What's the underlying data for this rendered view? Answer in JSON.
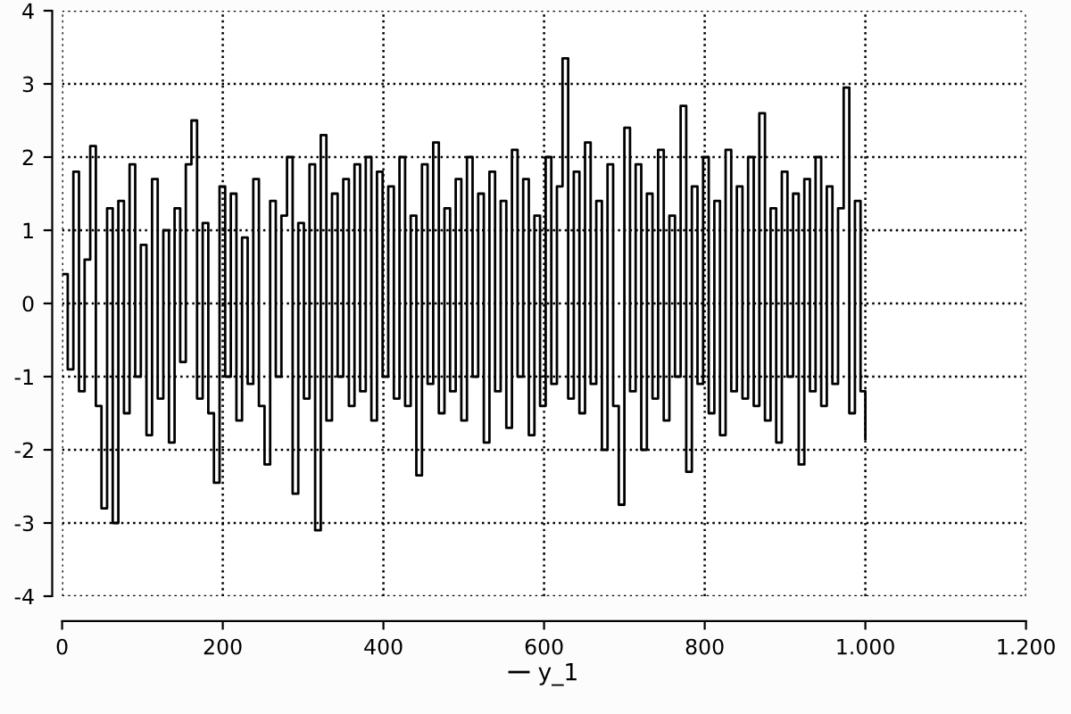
{
  "chart_data": {
    "type": "step",
    "xlim": [
      0,
      1200
    ],
    "ylim": [
      -4,
      4
    ],
    "xticks": [
      0,
      200,
      400,
      600,
      800,
      {
        "value": 1000,
        "label": "1.000"
      },
      {
        "value": 1200,
        "label": "1.200"
      }
    ],
    "yticks": [
      -4,
      -3,
      -2,
      -1,
      0,
      1,
      2,
      3,
      4
    ],
    "grid": true,
    "legend": "bottom",
    "line_style": "solid",
    "series": [
      {
        "name": "y_1",
        "color": "#000000",
        "x": [
          0,
          7,
          14,
          21,
          28,
          35,
          42,
          49,
          56,
          63,
          70,
          77,
          84,
          91,
          98,
          105,
          112,
          119,
          126,
          133,
          140,
          147,
          154,
          161,
          168,
          175,
          182,
          189,
          196,
          203,
          210,
          217,
          224,
          231,
          238,
          245,
          252,
          259,
          266,
          273,
          280,
          287,
          294,
          301,
          308,
          315,
          322,
          329,
          336,
          343,
          350,
          357,
          364,
          371,
          378,
          385,
          392,
          399,
          406,
          413,
          420,
          427,
          434,
          441,
          448,
          455,
          462,
          469,
          476,
          483,
          490,
          497,
          504,
          511,
          518,
          525,
          532,
          539,
          546,
          553,
          560,
          567,
          574,
          581,
          588,
          595,
          602,
          609,
          616,
          623,
          630,
          637,
          644,
          651,
          658,
          665,
          672,
          679,
          686,
          693,
          700,
          707,
          714,
          721,
          728,
          735,
          742,
          749,
          756,
          763,
          770,
          777,
          784,
          791,
          798,
          805,
          812,
          819,
          826,
          833,
          840,
          847,
          854,
          861,
          868,
          875,
          882,
          889,
          896,
          903,
          910,
          917,
          924,
          931,
          938,
          945,
          952,
          959,
          966,
          973,
          980,
          987,
          994,
          1000
        ],
        "values": [
          0.4,
          -0.9,
          1.8,
          -1.2,
          0.6,
          2.15,
          -1.4,
          -2.8,
          1.3,
          -3.0,
          1.4,
          -1.5,
          1.9,
          -1.0,
          0.8,
          -1.8,
          1.7,
          -1.3,
          1.0,
          -1.9,
          1.3,
          -0.8,
          1.9,
          2.5,
          -1.3,
          1.1,
          -1.5,
          -2.45,
          1.6,
          -1.0,
          1.5,
          -1.6,
          0.9,
          -1.1,
          1.7,
          -1.4,
          -2.2,
          1.4,
          -1.0,
          1.2,
          2.0,
          -2.6,
          1.1,
          -1.3,
          1.9,
          -3.1,
          2.3,
          -1.6,
          1.5,
          -1.0,
          1.7,
          -1.4,
          1.9,
          -1.2,
          2.0,
          -1.6,
          1.8,
          -1.0,
          1.6,
          -1.3,
          2.0,
          -1.4,
          1.2,
          -2.35,
          1.9,
          -1.1,
          2.2,
          -1.5,
          1.3,
          -1.2,
          1.7,
          -1.6,
          2.0,
          -1.0,
          1.5,
          -1.9,
          1.8,
          -1.2,
          1.4,
          -1.7,
          2.1,
          -1.0,
          1.7,
          -1.8,
          1.2,
          -1.4,
          2.0,
          -1.1,
          1.6,
          3.35,
          -1.3,
          1.8,
          -1.5,
          2.2,
          -1.1,
          1.4,
          -2.0,
          1.9,
          -1.4,
          -2.75,
          2.4,
          -1.2,
          1.9,
          -2.0,
          1.5,
          -1.3,
          2.1,
          -1.6,
          1.2,
          -1.0,
          2.7,
          -2.3,
          1.6,
          -1.1,
          2.0,
          -1.5,
          1.4,
          -1.8,
          2.1,
          -1.2,
          1.6,
          -1.3,
          2.0,
          -1.4,
          2.6,
          -1.6,
          1.3,
          -1.9,
          1.8,
          -1.0,
          1.5,
          -2.2,
          1.7,
          -1.2,
          2.0,
          -1.4,
          1.6,
          -1.1,
          1.3,
          2.95,
          -1.5,
          1.4,
          -1.2,
          -1.85
        ]
      }
    ]
  }
}
